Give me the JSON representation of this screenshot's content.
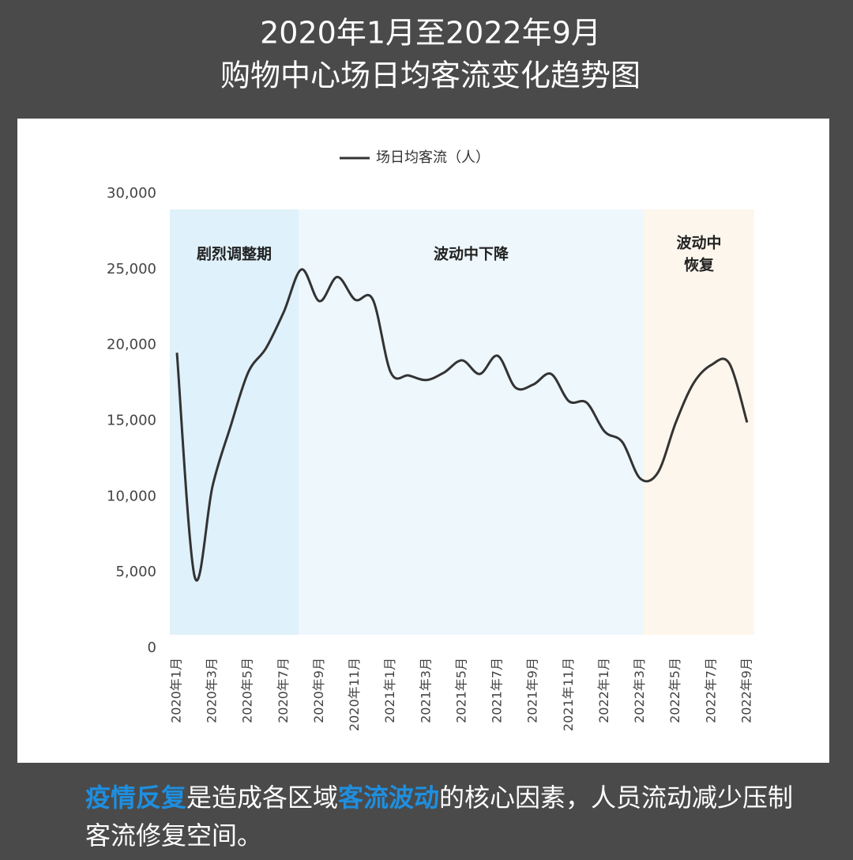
{
  "chart_data": {
    "type": "line",
    "title": [
      "2020年1月至2022年9月",
      "购物中心场日均客流变化趋势图"
    ],
    "categories": [
      "2020年1月",
      null,
      "2020年3月",
      null,
      "2020年5月",
      null,
      "2020年7月",
      null,
      "2020年9月",
      null,
      "2020年11月",
      null,
      "2021年1月",
      null,
      "2021年3月",
      null,
      "2021年5月",
      null,
      "2021年7月",
      null,
      "2021年9月",
      null,
      "2021年11月",
      null,
      "2022年1月",
      null,
      "2022年3月",
      null,
      "2022年5月",
      null,
      "2022年7月",
      null,
      "2022年9月"
    ],
    "series": [
      {
        "name": "场日均客流（人）",
        "color": "#333333",
        "values": [
          19500,
          4700,
          10700,
          14600,
          18200,
          19800,
          22200,
          25000,
          22900,
          24500,
          23000,
          23000,
          18200,
          18000,
          17700,
          18200,
          19000,
          18100,
          19300,
          17200,
          17400,
          18100,
          16300,
          16200,
          14300,
          13600,
          11200,
          11600,
          14900,
          17500,
          18700,
          18800,
          14900
        ]
      }
    ],
    "ylim": [
      0,
      30000
    ],
    "yticks": [
      0,
      {
        "value": 5000,
        "label": "5,000"
      },
      {
        "value": 10000,
        "label": "10,000"
      },
      {
        "value": 15000,
        "label": "15,000"
      },
      {
        "value": 20000,
        "label": "20,000"
      },
      {
        "value": 25000,
        "label": "25,000"
      },
      {
        "value": 30000,
        "label": "30,000"
      }
    ],
    "phases": [
      {
        "label": [
          "剧烈调整期"
        ],
        "color": "#dff1fa"
      },
      {
        "label": [
          "波动中下降"
        ],
        "color": "#edf7fc"
      },
      {
        "label": [
          "波动中",
          "恢复"
        ],
        "color": "#fdf6ec"
      }
    ],
    "caption": [
      {
        "text": "疫情反复",
        "highlight": true
      },
      {
        "text": "是造成各区域",
        "highlight": false
      },
      {
        "text": "客流波动",
        "highlight": true
      },
      {
        "text": "的核心因素，人员流动减少压制客流修复空间。",
        "highlight": false
      }
    ]
  }
}
